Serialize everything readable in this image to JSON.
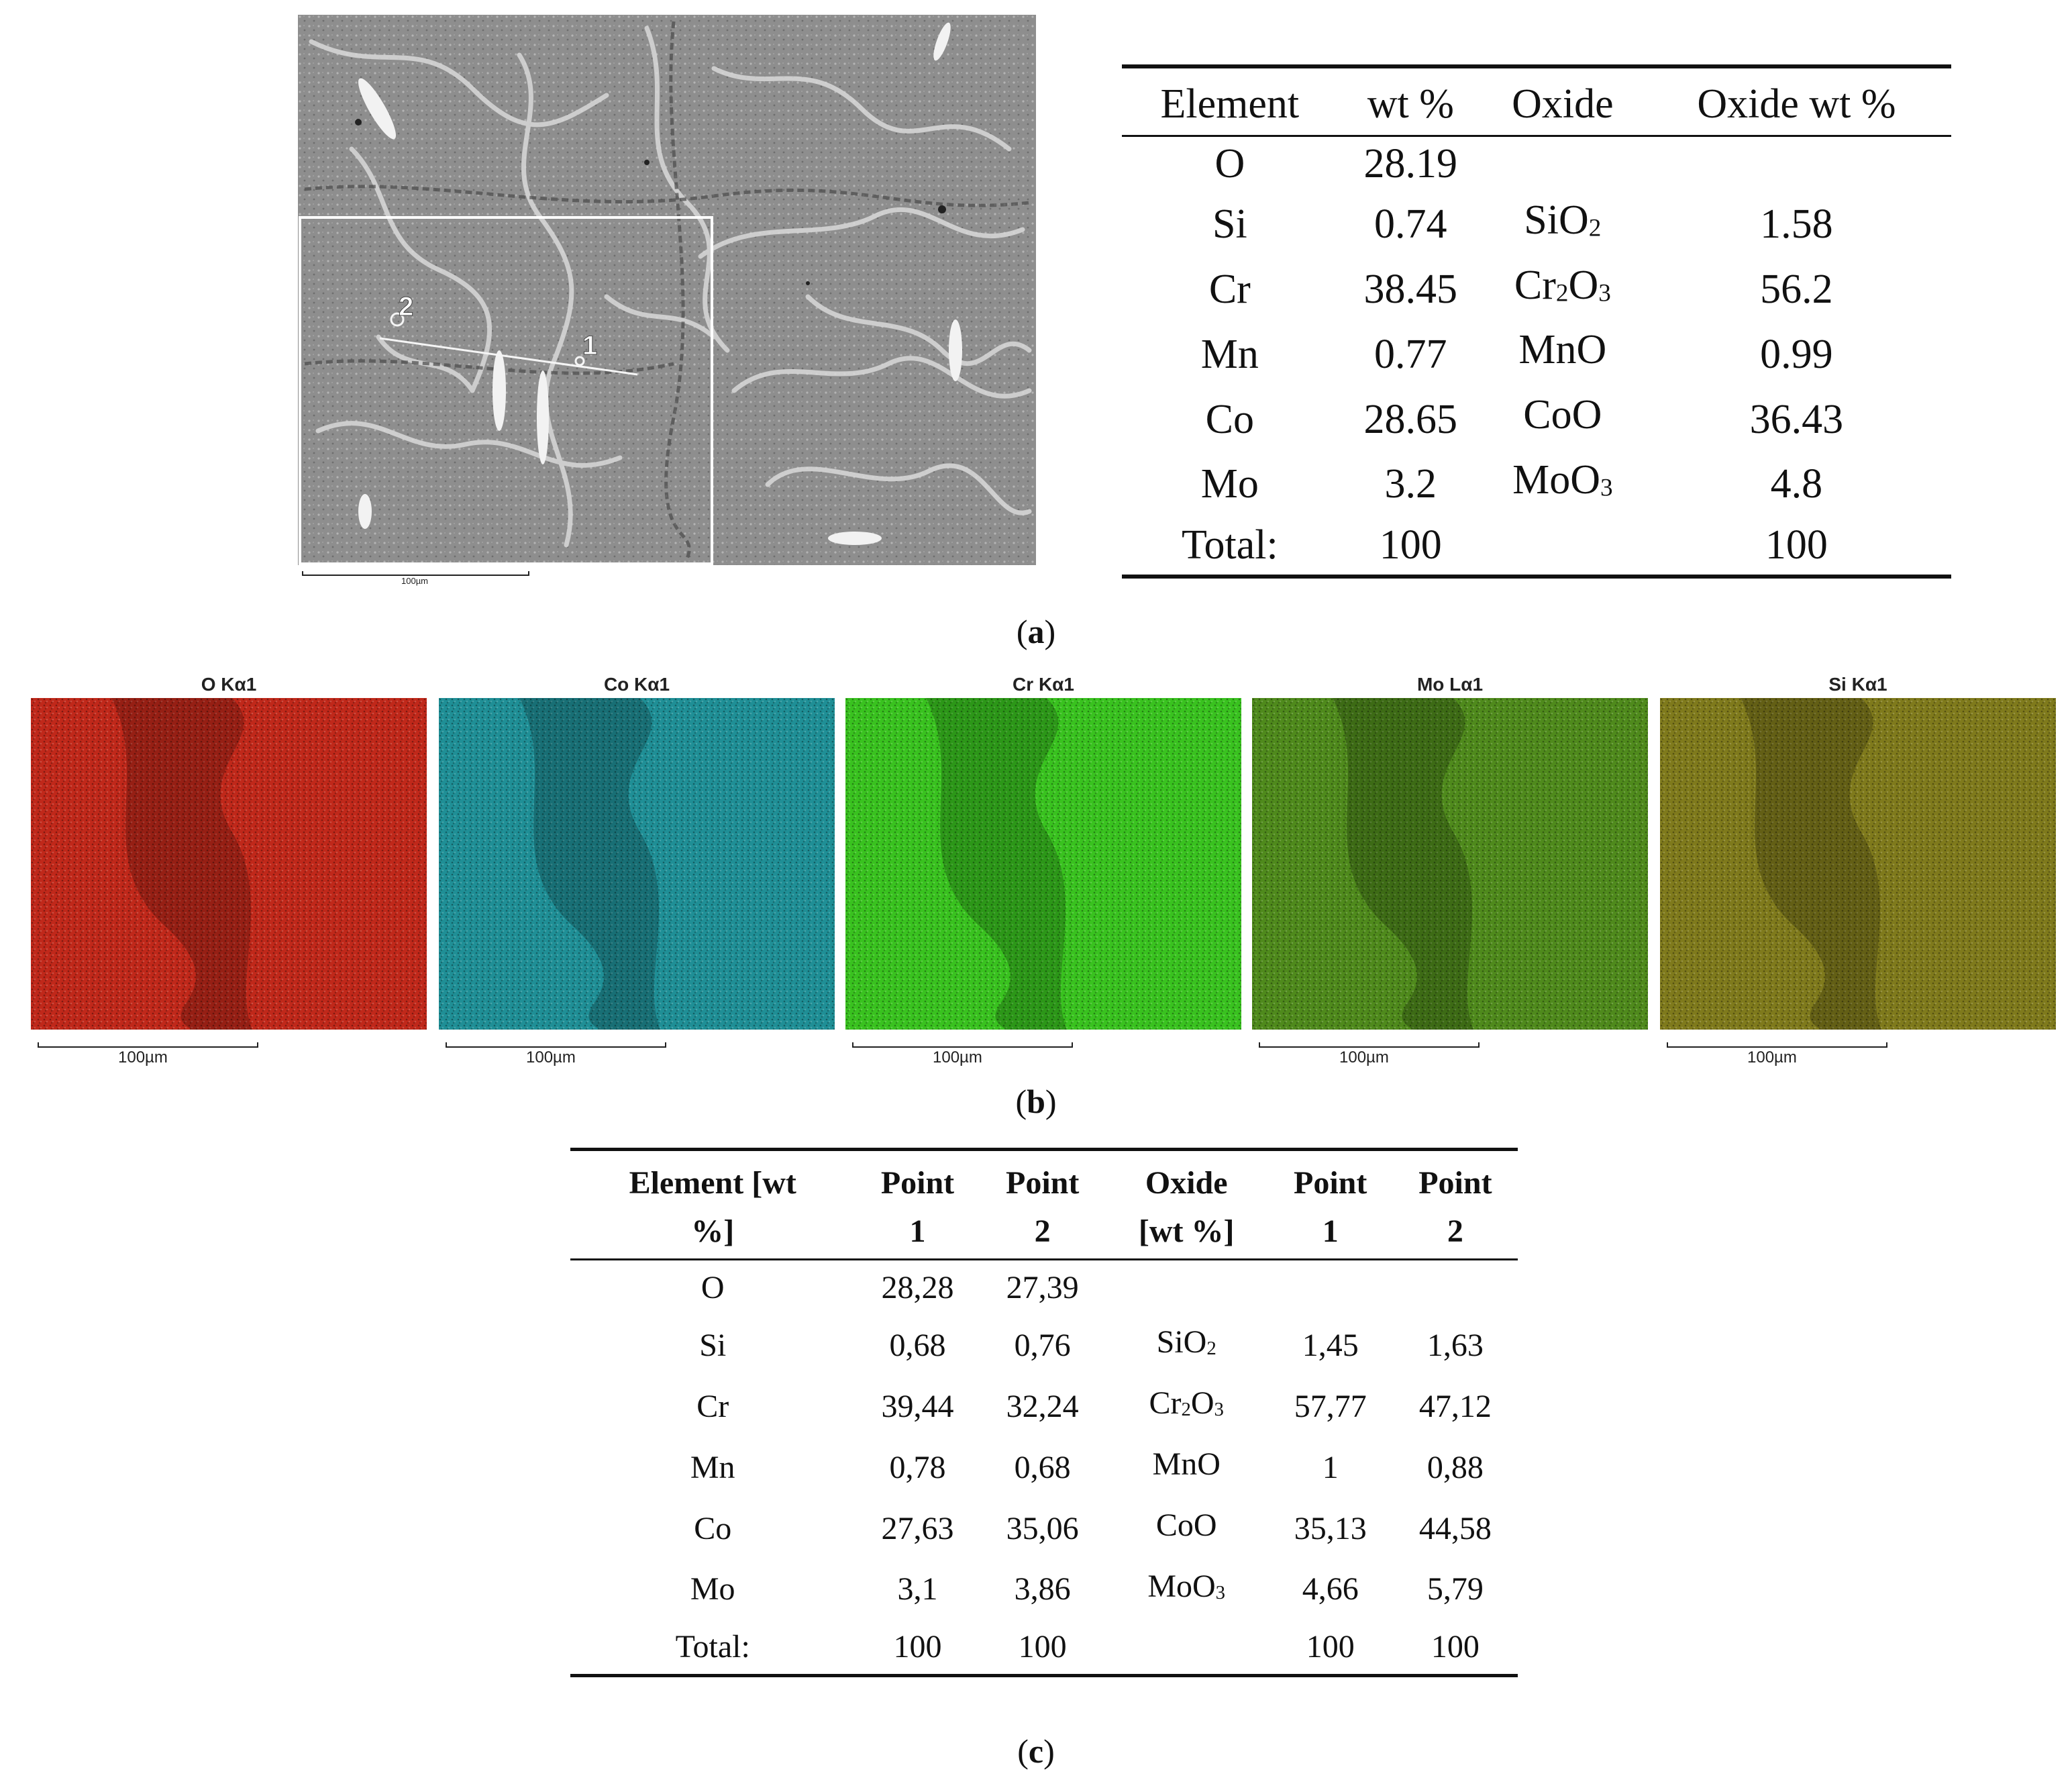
{
  "panel_a": {
    "sem_image": {
      "point_labels": [
        "2",
        "1"
      ],
      "scale_label": "100µm"
    },
    "table": {
      "headers": [
        "Element",
        "wt %",
        "Oxide",
        "Oxide wt %"
      ],
      "rows": [
        {
          "element": "O",
          "wt": "28.19",
          "oxide_base": "",
          "oxide_sub1": "",
          "oxide_mid": "",
          "oxide_sub2": "",
          "oxide_wt": ""
        },
        {
          "element": "Si",
          "wt": "0.74",
          "oxide_base": "SiO",
          "oxide_sub1": "2",
          "oxide_mid": "",
          "oxide_sub2": "",
          "oxide_wt": "1.58"
        },
        {
          "element": "Cr",
          "wt": "38.45",
          "oxide_base": "Cr",
          "oxide_sub1": "2",
          "oxide_mid": "O",
          "oxide_sub2": "3",
          "oxide_wt": "56.2"
        },
        {
          "element": "Mn",
          "wt": "0.77",
          "oxide_base": "MnO",
          "oxide_sub1": "",
          "oxide_mid": "",
          "oxide_sub2": "",
          "oxide_wt": "0.99"
        },
        {
          "element": "Co",
          "wt": "28.65",
          "oxide_base": "CoO",
          "oxide_sub1": "",
          "oxide_mid": "",
          "oxide_sub2": "",
          "oxide_wt": "36.43"
        },
        {
          "element": "Mo",
          "wt": "3.2",
          "oxide_base": "MoO",
          "oxide_sub1": "3",
          "oxide_mid": "",
          "oxide_sub2": "",
          "oxide_wt": "4.8"
        },
        {
          "element": "Total:",
          "wt": "100",
          "oxide_base": "",
          "oxide_sub1": "",
          "oxide_mid": "",
          "oxide_sub2": "",
          "oxide_wt": "100"
        }
      ]
    },
    "caption_open": "(",
    "caption_letter": "a",
    "caption_close": ")"
  },
  "panel_b": {
    "maps": [
      {
        "title": "O Kα1",
        "color": "#c0281a",
        "scale_label": "100µm"
      },
      {
        "title": "Co Kα1",
        "color": "#1f8f96",
        "scale_label": "100µm"
      },
      {
        "title": "Cr Kα1",
        "color": "#39c21f",
        "scale_label": "100µm"
      },
      {
        "title": "Mo Lα1",
        "color": "#4f8a1c",
        "scale_label": "100µm"
      },
      {
        "title": "Si Kα1",
        "color": "#7f7a1c",
        "scale_label": "100µm"
      }
    ],
    "caption_open": "(",
    "caption_letter": "b",
    "caption_close": ")"
  },
  "panel_c": {
    "table": {
      "headers": [
        {
          "line1": "Element [wt",
          "line2": "%]"
        },
        {
          "line1": "Point",
          "line2": "1"
        },
        {
          "line1": "Point",
          "line2": "2"
        },
        {
          "line1": "Oxide",
          "line2": "[wt %]"
        },
        {
          "line1": "Point",
          "line2": "1"
        },
        {
          "line1": "Point",
          "line2": "2"
        }
      ],
      "rows": [
        {
          "element": "O",
          "p1": "28,28",
          "p2": "27,39",
          "oxide_base": "",
          "oxide_sub1": "",
          "oxide_mid": "",
          "oxide_sub2": "",
          "op1": "",
          "op2": ""
        },
        {
          "element": "Si",
          "p1": "0,68",
          "p2": "0,76",
          "oxide_base": "SiO",
          "oxide_sub1": "2",
          "oxide_mid": "",
          "oxide_sub2": "",
          "op1": "1,45",
          "op2": "1,63"
        },
        {
          "element": "Cr",
          "p1": "39,44",
          "p2": "32,24",
          "oxide_base": "Cr",
          "oxide_sub1": "2",
          "oxide_mid": "O",
          "oxide_sub2": "3",
          "op1": "57,77",
          "op2": "47,12"
        },
        {
          "element": "Mn",
          "p1": "0,78",
          "p2": "0,68",
          "oxide_base": "MnO",
          "oxide_sub1": "",
          "oxide_mid": "",
          "oxide_sub2": "",
          "op1": "1",
          "op2": "0,88"
        },
        {
          "element": "Co",
          "p1": "27,63",
          "p2": "35,06",
          "oxide_base": "CoO",
          "oxide_sub1": "",
          "oxide_mid": "",
          "oxide_sub2": "",
          "op1": "35,13",
          "op2": "44,58"
        },
        {
          "element": "Mo",
          "p1": "3,1",
          "p2": "3,86",
          "oxide_base": "MoO",
          "oxide_sub1": "3",
          "oxide_mid": "",
          "oxide_sub2": "",
          "op1": "4,66",
          "op2": "5,79"
        },
        {
          "element": "Total:",
          "p1": "100",
          "p2": "100",
          "oxide_base": "",
          "oxide_sub1": "",
          "oxide_mid": "",
          "oxide_sub2": "",
          "op1": "100",
          "op2": "100"
        }
      ]
    },
    "caption_open": "(",
    "caption_letter": "c",
    "caption_close": ")"
  }
}
